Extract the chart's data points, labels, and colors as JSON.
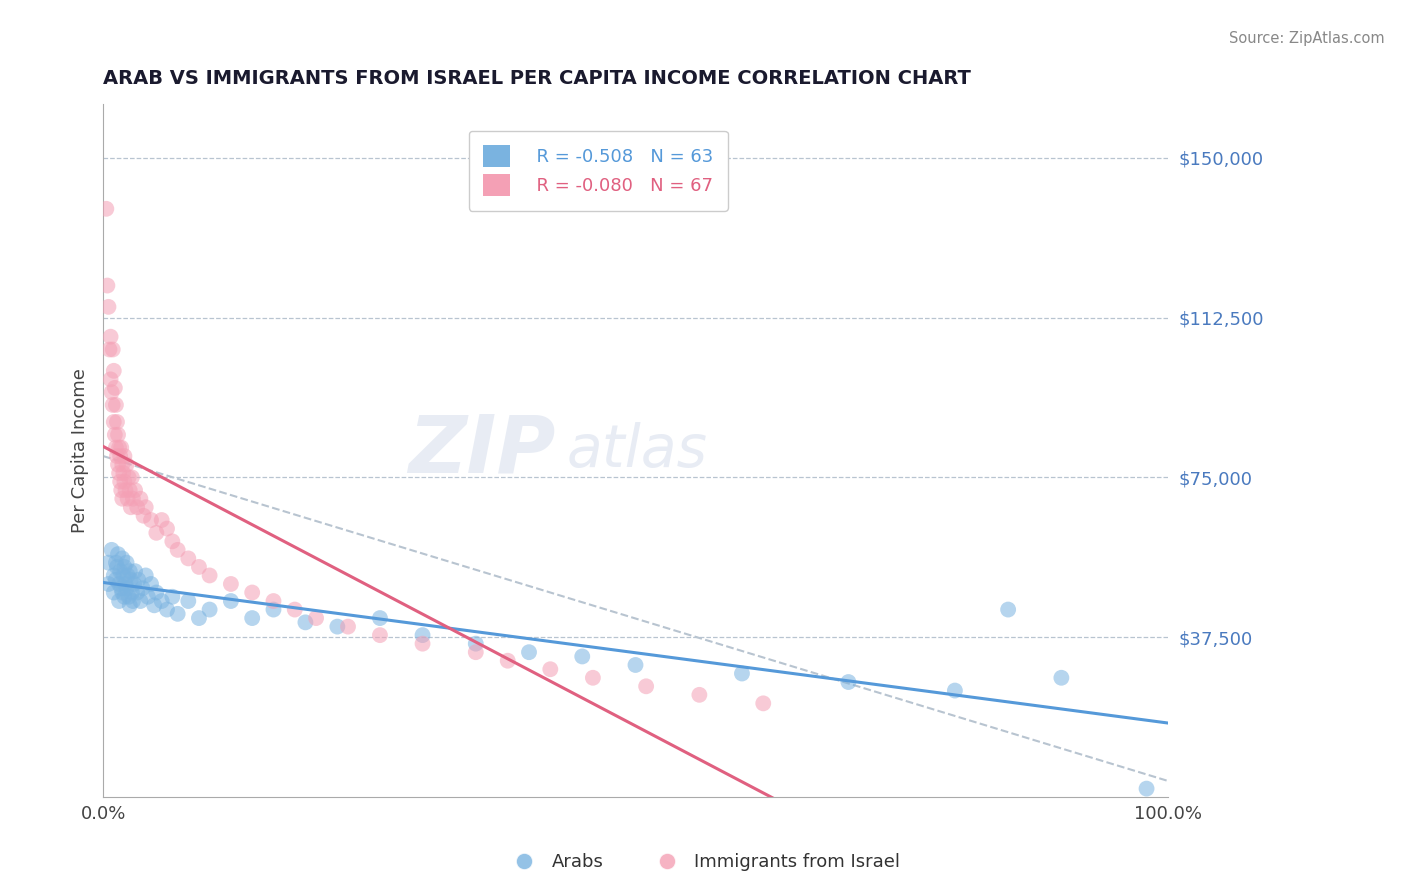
{
  "title": "ARAB VS IMMIGRANTS FROM ISRAEL PER CAPITA INCOME CORRELATION CHART",
  "source": "Source: ZipAtlas.com",
  "ylabel": "Per Capita Income",
  "xlim": [
    0,
    1
  ],
  "ylim": [
    0,
    162500
  ],
  "yticks_grid": [
    37500,
    75000,
    112500,
    150000
  ],
  "ytick_labels": [
    "$37,500",
    "$75,000",
    "$112,500",
    "$150,000"
  ],
  "arab_R": -0.508,
  "arab_N": 63,
  "israel_R": -0.08,
  "israel_N": 67,
  "arab_color": "#7ab3e0",
  "israel_color": "#f4a0b5",
  "arab_line_color": "#5599d9",
  "israel_line_color": "#e06080",
  "gray_line_color": "#b8c4d0",
  "legend_label_arab": "Arabs",
  "legend_label_israel": "Immigrants from Israel",
  "arab_scatter_x": [
    0.005,
    0.005,
    0.008,
    0.01,
    0.01,
    0.012,
    0.012,
    0.013,
    0.014,
    0.015,
    0.015,
    0.016,
    0.017,
    0.018,
    0.018,
    0.019,
    0.02,
    0.02,
    0.021,
    0.022,
    0.022,
    0.023,
    0.024,
    0.025,
    0.025,
    0.026,
    0.027,
    0.028,
    0.029,
    0.03,
    0.032,
    0.033,
    0.035,
    0.037,
    0.04,
    0.042,
    0.045,
    0.048,
    0.05,
    0.055,
    0.06,
    0.065,
    0.07,
    0.08,
    0.09,
    0.1,
    0.12,
    0.14,
    0.16,
    0.19,
    0.22,
    0.26,
    0.3,
    0.35,
    0.4,
    0.45,
    0.5,
    0.6,
    0.7,
    0.8,
    0.85,
    0.9,
    0.98
  ],
  "arab_scatter_y": [
    55000,
    50000,
    58000,
    52000,
    48000,
    55000,
    51000,
    54000,
    57000,
    50000,
    46000,
    53000,
    49000,
    56000,
    48000,
    52000,
    54000,
    47000,
    50000,
    55000,
    49000,
    52000,
    47000,
    53000,
    45000,
    51000,
    48000,
    46000,
    50000,
    53000,
    48000,
    51000,
    46000,
    49000,
    52000,
    47000,
    50000,
    45000,
    48000,
    46000,
    44000,
    47000,
    43000,
    46000,
    42000,
    44000,
    46000,
    42000,
    44000,
    41000,
    40000,
    42000,
    38000,
    36000,
    34000,
    33000,
    31000,
    29000,
    27000,
    25000,
    44000,
    28000,
    2000
  ],
  "israel_scatter_x": [
    0.003,
    0.004,
    0.005,
    0.006,
    0.007,
    0.007,
    0.008,
    0.009,
    0.009,
    0.01,
    0.01,
    0.011,
    0.011,
    0.012,
    0.012,
    0.013,
    0.013,
    0.014,
    0.014,
    0.015,
    0.015,
    0.016,
    0.016,
    0.017,
    0.017,
    0.018,
    0.018,
    0.019,
    0.02,
    0.02,
    0.021,
    0.022,
    0.023,
    0.024,
    0.025,
    0.026,
    0.027,
    0.028,
    0.03,
    0.032,
    0.035,
    0.038,
    0.04,
    0.045,
    0.05,
    0.055,
    0.06,
    0.065,
    0.07,
    0.08,
    0.09,
    0.1,
    0.12,
    0.14,
    0.16,
    0.18,
    0.2,
    0.23,
    0.26,
    0.3,
    0.35,
    0.38,
    0.42,
    0.46,
    0.51,
    0.56,
    0.62
  ],
  "israel_scatter_y": [
    138000,
    120000,
    115000,
    105000,
    108000,
    98000,
    95000,
    105000,
    92000,
    100000,
    88000,
    96000,
    85000,
    92000,
    82000,
    88000,
    80000,
    85000,
    78000,
    82000,
    76000,
    80000,
    74000,
    82000,
    72000,
    78000,
    70000,
    76000,
    80000,
    74000,
    72000,
    78000,
    70000,
    75000,
    72000,
    68000,
    75000,
    70000,
    72000,
    68000,
    70000,
    66000,
    68000,
    65000,
    62000,
    65000,
    63000,
    60000,
    58000,
    56000,
    54000,
    52000,
    50000,
    48000,
    46000,
    44000,
    42000,
    40000,
    38000,
    36000,
    34000,
    32000,
    30000,
    28000,
    26000,
    24000,
    22000
  ]
}
